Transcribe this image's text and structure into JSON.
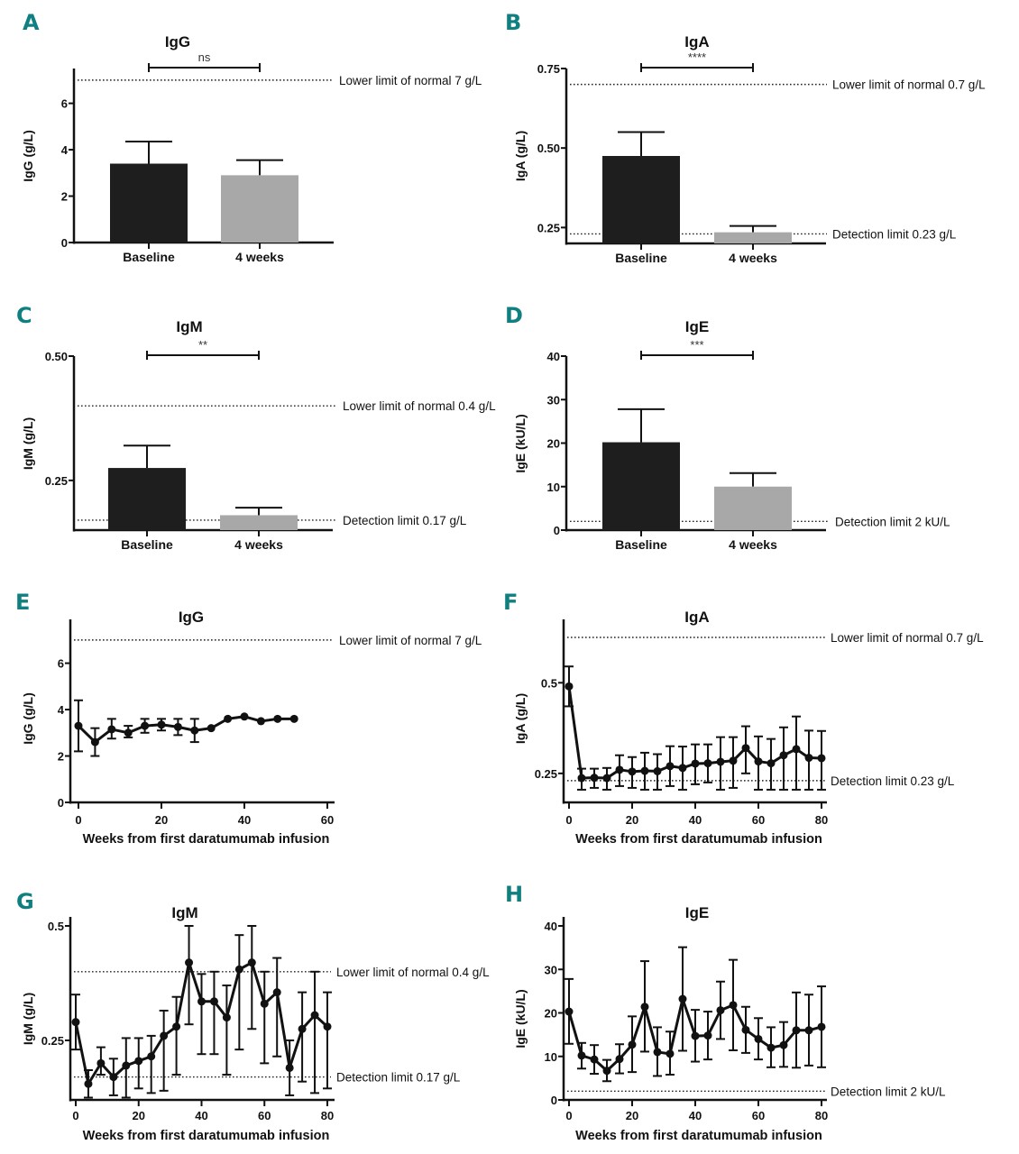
{
  "chart_data": [
    {
      "panel": "A",
      "type": "bar",
      "title": "IgG",
      "ylabel": "IgG (g/L)",
      "xlabel": "",
      "categories": [
        "Baseline",
        "4 weeks"
      ],
      "values": [
        3.4,
        2.9
      ],
      "errors_upper": [
        4.35,
        3.55
      ],
      "bar_colors": [
        "#1e1e1e",
        "#a8a8a8"
      ],
      "ylim": [
        0,
        7.5
      ],
      "yticks": [
        0,
        2,
        4,
        6
      ],
      "ytick_labels": [
        "0",
        "2",
        "4",
        "6"
      ],
      "reference_lines": [
        {
          "value": 7,
          "label": "Lower limit of normal 7 g/L"
        }
      ],
      "significance": {
        "label": "ns",
        "value": 7.5
      }
    },
    {
      "panel": "B",
      "type": "bar",
      "title": "IgA",
      "ylabel": "IgA (g/L)",
      "xlabel": "",
      "categories": [
        "Baseline",
        "4 weeks"
      ],
      "values": [
        0.475,
        0.235
      ],
      "errors_upper": [
        0.55,
        0.255
      ],
      "bar_colors": [
        "#1e1e1e",
        "#a8a8a8"
      ],
      "ylim": [
        0.2,
        0.75
      ],
      "yticks": [
        0.25,
        0.5,
        0.75
      ],
      "ytick_labels": [
        "0.25",
        "0.50",
        "0.75"
      ],
      "reference_lines": [
        {
          "value": 0.7,
          "label": "Lower limit of normal 0.7 g/L"
        },
        {
          "value": 0.23,
          "label": "Detection limit 0.23 g/L"
        }
      ],
      "significance": {
        "label": "****",
        "value": 0.75
      }
    },
    {
      "panel": "C",
      "type": "bar",
      "title": "IgM",
      "ylabel": "IgM (g/L)",
      "xlabel": "",
      "categories": [
        "Baseline",
        "4 weeks"
      ],
      "values": [
        0.275,
        0.18
      ],
      "errors_upper": [
        0.32,
        0.195
      ],
      "bar_colors": [
        "#1e1e1e",
        "#a8a8a8"
      ],
      "ylim": [
        0.15,
        0.5
      ],
      "yticks": [
        0.25,
        0.5
      ],
      "ytick_labels": [
        "0.25",
        "0.50"
      ],
      "reference_lines": [
        {
          "value": 0.4,
          "label": "Lower limit of normal 0.4 g/L"
        },
        {
          "value": 0.17,
          "label": "Detection limit 0.17 g/L"
        }
      ],
      "significance": {
        "label": "**",
        "value": 0.5
      }
    },
    {
      "panel": "D",
      "type": "bar",
      "title": "IgE",
      "ylabel": "IgE (kU/L)",
      "xlabel": "",
      "categories": [
        "Baseline",
        "4 weeks"
      ],
      "values": [
        20.2,
        10.0
      ],
      "errors_upper": [
        27.8,
        13.1
      ],
      "bar_colors": [
        "#1e1e1e",
        "#a8a8a8"
      ],
      "ylim": [
        0,
        40
      ],
      "yticks": [
        0,
        10,
        20,
        30,
        40
      ],
      "ytick_labels": [
        "0",
        "10",
        "20",
        "30",
        "40"
      ],
      "reference_lines": [
        {
          "value": 2,
          "label": "Detection limit 2 kU/L"
        }
      ],
      "significance": {
        "label": "***",
        "value": 40
      }
    },
    {
      "panel": "E",
      "type": "line",
      "title": "IgG",
      "ylabel": "IgG (g/L)",
      "xlabel": "Weeks from first daratumumab infusion",
      "x": [
        0,
        4,
        8,
        12,
        16,
        20,
        24,
        28,
        32,
        36,
        40,
        44,
        48,
        52
      ],
      "y": [
        3.3,
        2.6,
        3.15,
        3.0,
        3.3,
        3.35,
        3.25,
        3.1,
        3.2,
        3.6,
        3.7,
        3.5,
        3.6,
        3.6
      ],
      "err_low": [
        2.2,
        2.0,
        2.75,
        2.8,
        3.0,
        3.1,
        2.9,
        2.6,
        null,
        null,
        null,
        null,
        null,
        null
      ],
      "err_high": [
        4.4,
        3.2,
        3.6,
        3.3,
        3.6,
        3.6,
        3.6,
        3.6,
        null,
        null,
        null,
        null,
        null,
        null
      ],
      "xlim": [
        0,
        60
      ],
      "ylim": [
        0,
        7.5
      ],
      "xticks": [
        0,
        20,
        40,
        60
      ],
      "yticks": [
        0,
        2,
        4,
        6
      ],
      "ytick_labels": [
        "0",
        "2",
        "4",
        "6"
      ],
      "reference_lines": [
        {
          "value": 7,
          "label": "Lower limit of normal 7 g/L"
        }
      ]
    },
    {
      "panel": "F",
      "type": "line",
      "title": "IgA",
      "ylabel": "IgA (g/L)",
      "xlabel": "Weeks from first daratumumab infusion",
      "x": [
        0,
        4,
        8,
        12,
        16,
        20,
        24,
        28,
        32,
        36,
        40,
        44,
        48,
        52,
        56,
        60,
        64,
        68,
        72,
        76,
        80
      ],
      "y": [
        0.49,
        0.237,
        0.238,
        0.237,
        0.26,
        0.255,
        0.257,
        0.256,
        0.27,
        0.265,
        0.277,
        0.278,
        0.282,
        0.285,
        0.32,
        0.283,
        0.278,
        0.3,
        0.317,
        0.293,
        0.292
      ],
      "err_low": [
        0.435,
        0.205,
        0.21,
        0.205,
        0.215,
        0.21,
        0.205,
        0.205,
        0.215,
        0.205,
        0.22,
        0.225,
        0.205,
        0.21,
        0.25,
        0.205,
        0.205,
        0.205,
        0.205,
        0.205,
        0.205
      ],
      "err_high": [
        0.545,
        0.263,
        0.263,
        0.265,
        0.3,
        0.295,
        0.307,
        0.303,
        0.325,
        0.324,
        0.33,
        0.33,
        0.35,
        0.35,
        0.38,
        0.352,
        0.345,
        0.377,
        0.407,
        0.368,
        0.367
      ],
      "xlim": [
        0,
        80
      ],
      "ylim": [
        0.17,
        0.65
      ],
      "xticks": [
        0,
        20,
        40,
        60,
        80
      ],
      "yticks": [
        0.25,
        0.5
      ],
      "ytick_labels": [
        "0.25",
        "0.5"
      ],
      "reference_lines": [
        {
          "value": 0.7,
          "label": "Lower limit of normal 0.7 g/L"
        },
        {
          "value": 0.23,
          "label": "Detection limit 0.23 g/L"
        }
      ]
    },
    {
      "panel": "G",
      "type": "line",
      "title": "IgM",
      "ylabel": "IgM (g/L)",
      "xlabel": "Weeks from first daratumumab infusion",
      "x": [
        0,
        4,
        8,
        12,
        16,
        20,
        24,
        28,
        32,
        36,
        40,
        44,
        48,
        52,
        56,
        60,
        64,
        68,
        72,
        76,
        80
      ],
      "y": [
        0.29,
        0.155,
        0.2,
        0.17,
        0.195,
        0.205,
        0.215,
        0.26,
        0.28,
        0.42,
        0.335,
        0.335,
        0.3,
        0.405,
        0.42,
        0.33,
        0.355,
        0.19,
        0.275,
        0.305,
        0.28
      ],
      "err_low": [
        0.23,
        0.125,
        0.175,
        0.13,
        0.125,
        0.145,
        0.135,
        0.14,
        0.175,
        0.285,
        0.22,
        0.22,
        0.175,
        0.23,
        0.275,
        0.2,
        0.215,
        0.13,
        0.16,
        0.135,
        0.145
      ],
      "err_high": [
        0.35,
        0.185,
        0.235,
        0.21,
        0.255,
        0.255,
        0.26,
        0.315,
        0.345,
        0.5,
        0.395,
        0.4,
        0.37,
        0.48,
        0.5,
        0.4,
        0.43,
        0.25,
        0.355,
        0.4,
        0.355
      ],
      "xlim": [
        0,
        80
      ],
      "ylim": [
        0.12,
        0.5
      ],
      "xticks": [
        0,
        20,
        40,
        60,
        80
      ],
      "yticks": [
        0.25,
        0.5
      ],
      "ytick_labels": [
        "0.25",
        "0.5"
      ],
      "reference_lines": [
        {
          "value": 0.4,
          "label": "Lower limit of normal 0.4 g/L"
        },
        {
          "value": 0.17,
          "label": "Detection limit 0.17 g/L"
        }
      ]
    },
    {
      "panel": "H",
      "type": "line",
      "title": "IgE",
      "ylabel": "IgE (kU/L)",
      "xlabel": "Weeks from first daratumumab infusion",
      "x": [
        0,
        4,
        8,
        12,
        16,
        20,
        24,
        28,
        32,
        36,
        40,
        44,
        48,
        52,
        56,
        60,
        64,
        68,
        72,
        76,
        80
      ],
      "y": [
        20.3,
        10.2,
        9.3,
        6.7,
        9.4,
        12.7,
        21.4,
        11.0,
        10.6,
        23.2,
        14.7,
        14.8,
        20.6,
        21.8,
        16.1,
        14.0,
        12.0,
        12.6,
        16.0,
        16.0,
        16.8
      ],
      "err_low": [
        12.9,
        7.2,
        6.0,
        4.3,
        6.1,
        6.4,
        11.1,
        5.5,
        5.8,
        11.3,
        8.8,
        9.3,
        14.0,
        11.4,
        10.8,
        9.3,
        7.5,
        7.6,
        7.4,
        7.9,
        7.5
      ],
      "err_high": [
        27.8,
        13.1,
        12.6,
        9.2,
        12.8,
        19.2,
        31.9,
        16.7,
        15.7,
        35.1,
        20.7,
        20.3,
        27.2,
        32.2,
        21.4,
        18.8,
        16.7,
        17.9,
        24.7,
        24.2,
        26.1
      ],
      "xlim": [
        0,
        80
      ],
      "ylim": [
        0,
        40
      ],
      "xticks": [
        0,
        20,
        40,
        60,
        80
      ],
      "yticks": [
        0,
        10,
        20,
        30,
        40
      ],
      "ytick_labels": [
        "0",
        "10",
        "20",
        "30",
        "40"
      ],
      "reference_lines": [
        {
          "value": 2,
          "label": "Detection limit  2 kU/L"
        }
      ]
    }
  ]
}
